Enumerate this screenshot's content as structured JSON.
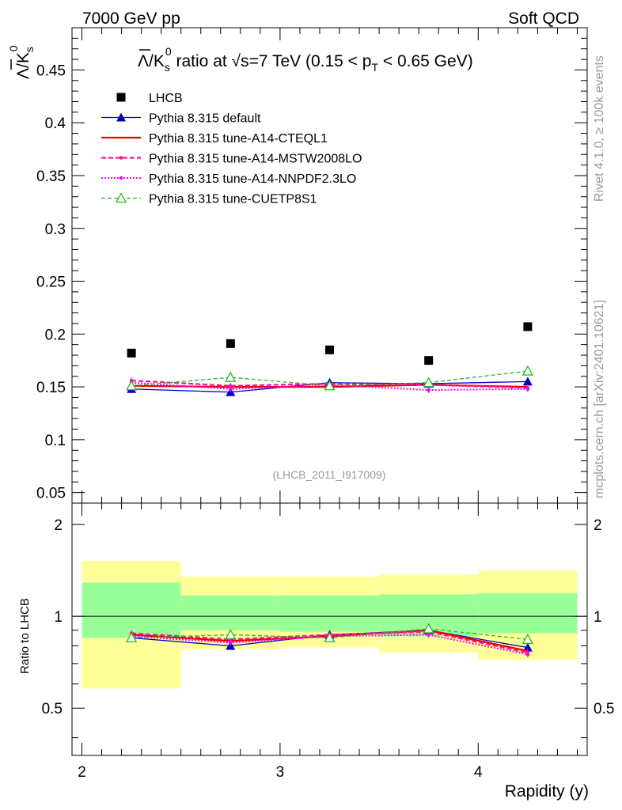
{
  "header": {
    "left": "7000 GeV pp",
    "right": "Soft QCD"
  },
  "side_labels": {
    "rivet": "Rivet 4.1.0, ≥ 100k events",
    "mcplots": "mcplots.cern.ch [arXiv:2401.10621]"
  },
  "colors": {
    "data": "#000000",
    "default": "#0000cc",
    "cteql1": "#ee0000",
    "mstw": "#ff1493",
    "nnpdf": "#ff00ff",
    "cuetp": "#22bb22",
    "band_yellow": "#ffff99",
    "band_green": "#99ff99"
  },
  "chart_data": [
    {
      "type": "scatter",
      "title_text": "/K",
      "title_text_rest": " ratio at √s=7 TeV (0.15 < p",
      "title_text_end": " < 0.65 GeV)",
      "title_sub_s": "s",
      "title_sup_0": "0",
      "title_sub_T": "T",
      "ylabel_main": "Λ",
      "ylabel_rest": "/K",
      "ylabel_sub": "s",
      "ylabel_sup": "0",
      "ylim": [
        0.04,
        0.49
      ],
      "yticks": [
        0.05,
        0.1,
        0.15,
        0.2,
        0.25,
        0.3,
        0.35,
        0.4,
        0.45
      ],
      "ytick_labels": [
        "0.05",
        "0.1",
        "0.15",
        "0.2",
        "0.25",
        "0.3",
        "0.35",
        "0.4",
        "0.45"
      ],
      "xlim": [
        1.95,
        4.55
      ],
      "x": [
        2.25,
        2.75,
        3.25,
        3.75,
        4.25
      ],
      "watermark": "(LHCB_2011_I917009)",
      "series": [
        {
          "name": "LHCB",
          "key": "data",
          "style": "data",
          "values": [
            0.182,
            0.191,
            0.185,
            0.175,
            0.207
          ]
        },
        {
          "name": "Pythia 8.315 default",
          "key": "default",
          "style": "default",
          "values": [
            0.148,
            0.145,
            0.154,
            0.153,
            0.155
          ]
        },
        {
          "name": "Pythia 8.315 tune-A14-CTEQL1",
          "key": "cteql1",
          "style": "cteql1",
          "values": [
            0.151,
            0.15,
            0.15,
            0.152,
            0.15
          ]
        },
        {
          "name": "Pythia 8.315 tune-A14-MSTW2008LO",
          "key": "mstw",
          "style": "mstw",
          "values": [
            0.156,
            0.151,
            0.153,
            0.152,
            0.149
          ]
        },
        {
          "name": "Pythia 8.315 tune-A14-NNPDF2.3LO",
          "key": "nnpdf",
          "style": "nnpdf",
          "values": [
            0.154,
            0.148,
            0.152,
            0.147,
            0.148
          ]
        },
        {
          "name": "Pythia 8.315 tune-CUETP8S1",
          "key": "cuetp",
          "style": "cuetp",
          "values": [
            0.151,
            0.159,
            0.151,
            0.154,
            0.165
          ]
        }
      ]
    },
    {
      "type": "scatter",
      "ylabel": "Ratio to LHCB",
      "xlabel": "Rapidity (y)",
      "ylim": [
        0.35,
        2.35
      ],
      "yticks": [
        0.5,
        1,
        2
      ],
      "ytick_labels": [
        "0.5",
        "1",
        "2"
      ],
      "xlim": [
        1.95,
        4.55
      ],
      "xticks": [
        2,
        3,
        4
      ],
      "xtick_labels": [
        "2",
        "3",
        "4"
      ],
      "x": [
        2.25,
        2.75,
        3.25,
        3.75,
        4.25
      ],
      "bins": [
        [
          2.0,
          2.5
        ],
        [
          2.5,
          3.0
        ],
        [
          3.0,
          3.5
        ],
        [
          3.5,
          4.0
        ],
        [
          4.0,
          4.5
        ]
      ],
      "band_stat": [
        [
          0.85,
          1.29
        ],
        [
          0.9,
          1.17
        ],
        [
          0.89,
          1.17
        ],
        [
          0.86,
          1.18
        ],
        [
          0.88,
          1.19
        ]
      ],
      "band_total": [
        [
          0.58,
          1.52
        ],
        [
          0.78,
          1.35
        ],
        [
          0.79,
          1.35
        ],
        [
          0.76,
          1.37
        ],
        [
          0.72,
          1.41
        ]
      ],
      "series": [
        {
          "name": "Pythia 8.315 default",
          "key": "default",
          "style": "default",
          "values": [
            0.85,
            0.8,
            0.87,
            0.9,
            0.79
          ]
        },
        {
          "name": "Pythia 8.315 tune-A14-CTEQL1",
          "key": "cteql1",
          "style": "cteql1",
          "values": [
            0.87,
            0.83,
            0.86,
            0.9,
            0.77
          ]
        },
        {
          "name": "Pythia 8.315 tune-A14-MSTW2008LO",
          "key": "mstw",
          "style": "mstw",
          "values": [
            0.88,
            0.84,
            0.87,
            0.89,
            0.76
          ]
        },
        {
          "name": "Pythia 8.315 tune-A14-NNPDF2.3LO",
          "key": "nnpdf",
          "style": "nnpdf",
          "values": [
            0.86,
            0.82,
            0.86,
            0.87,
            0.75
          ]
        },
        {
          "name": "Pythia 8.315 tune-CUETP8S1",
          "key": "cuetp",
          "style": "cuetp",
          "values": [
            0.85,
            0.87,
            0.85,
            0.91,
            0.84
          ]
        }
      ]
    }
  ]
}
